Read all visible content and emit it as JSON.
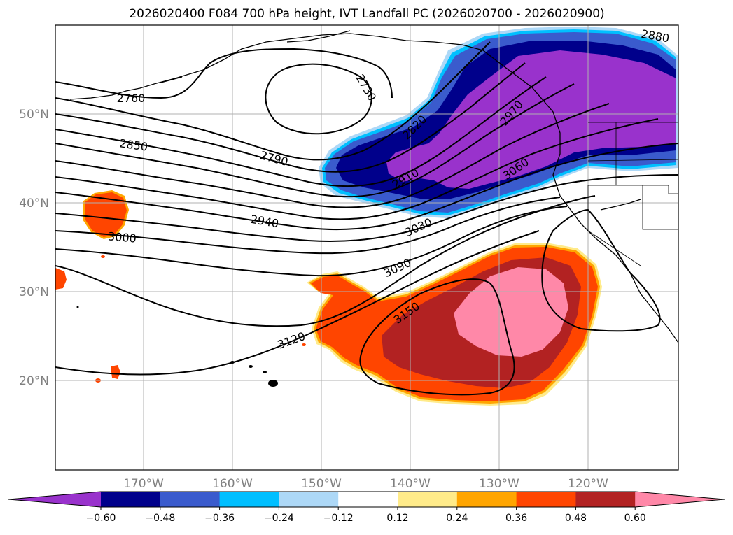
{
  "title": "2026020400 F084 700 hPa height, IVT Landfall PC (2026020700 - 2026020900)",
  "map": {
    "lat_labels": [
      "50°N",
      "40°N",
      "30°N",
      "20°N"
    ],
    "lon_labels": [
      "170°W",
      "160°W",
      "150°W",
      "140°W",
      "130°W",
      "120°W"
    ],
    "contour_labels": [
      "2730",
      "2760",
      "2790",
      "2820",
      "2850",
      "2880",
      "2910",
      "2940",
      "2970",
      "3000",
      "3030",
      "3060",
      "3090",
      "3120",
      "3150"
    ]
  },
  "colorbar": {
    "colors": [
      "#9932cc",
      "#00008b",
      "#3a5bcd",
      "#00bfff",
      "#add8f7",
      "#ffffff",
      "#ffeb8a",
      "#ffa500",
      "#ff4500",
      "#b22222",
      "#ff88a8"
    ],
    "tick_labels": [
      "−0.60",
      "−0.48",
      "−0.36",
      "−0.24",
      "−0.12",
      "0.12",
      "0.24",
      "0.36",
      "0.48",
      "0.60"
    ]
  }
}
